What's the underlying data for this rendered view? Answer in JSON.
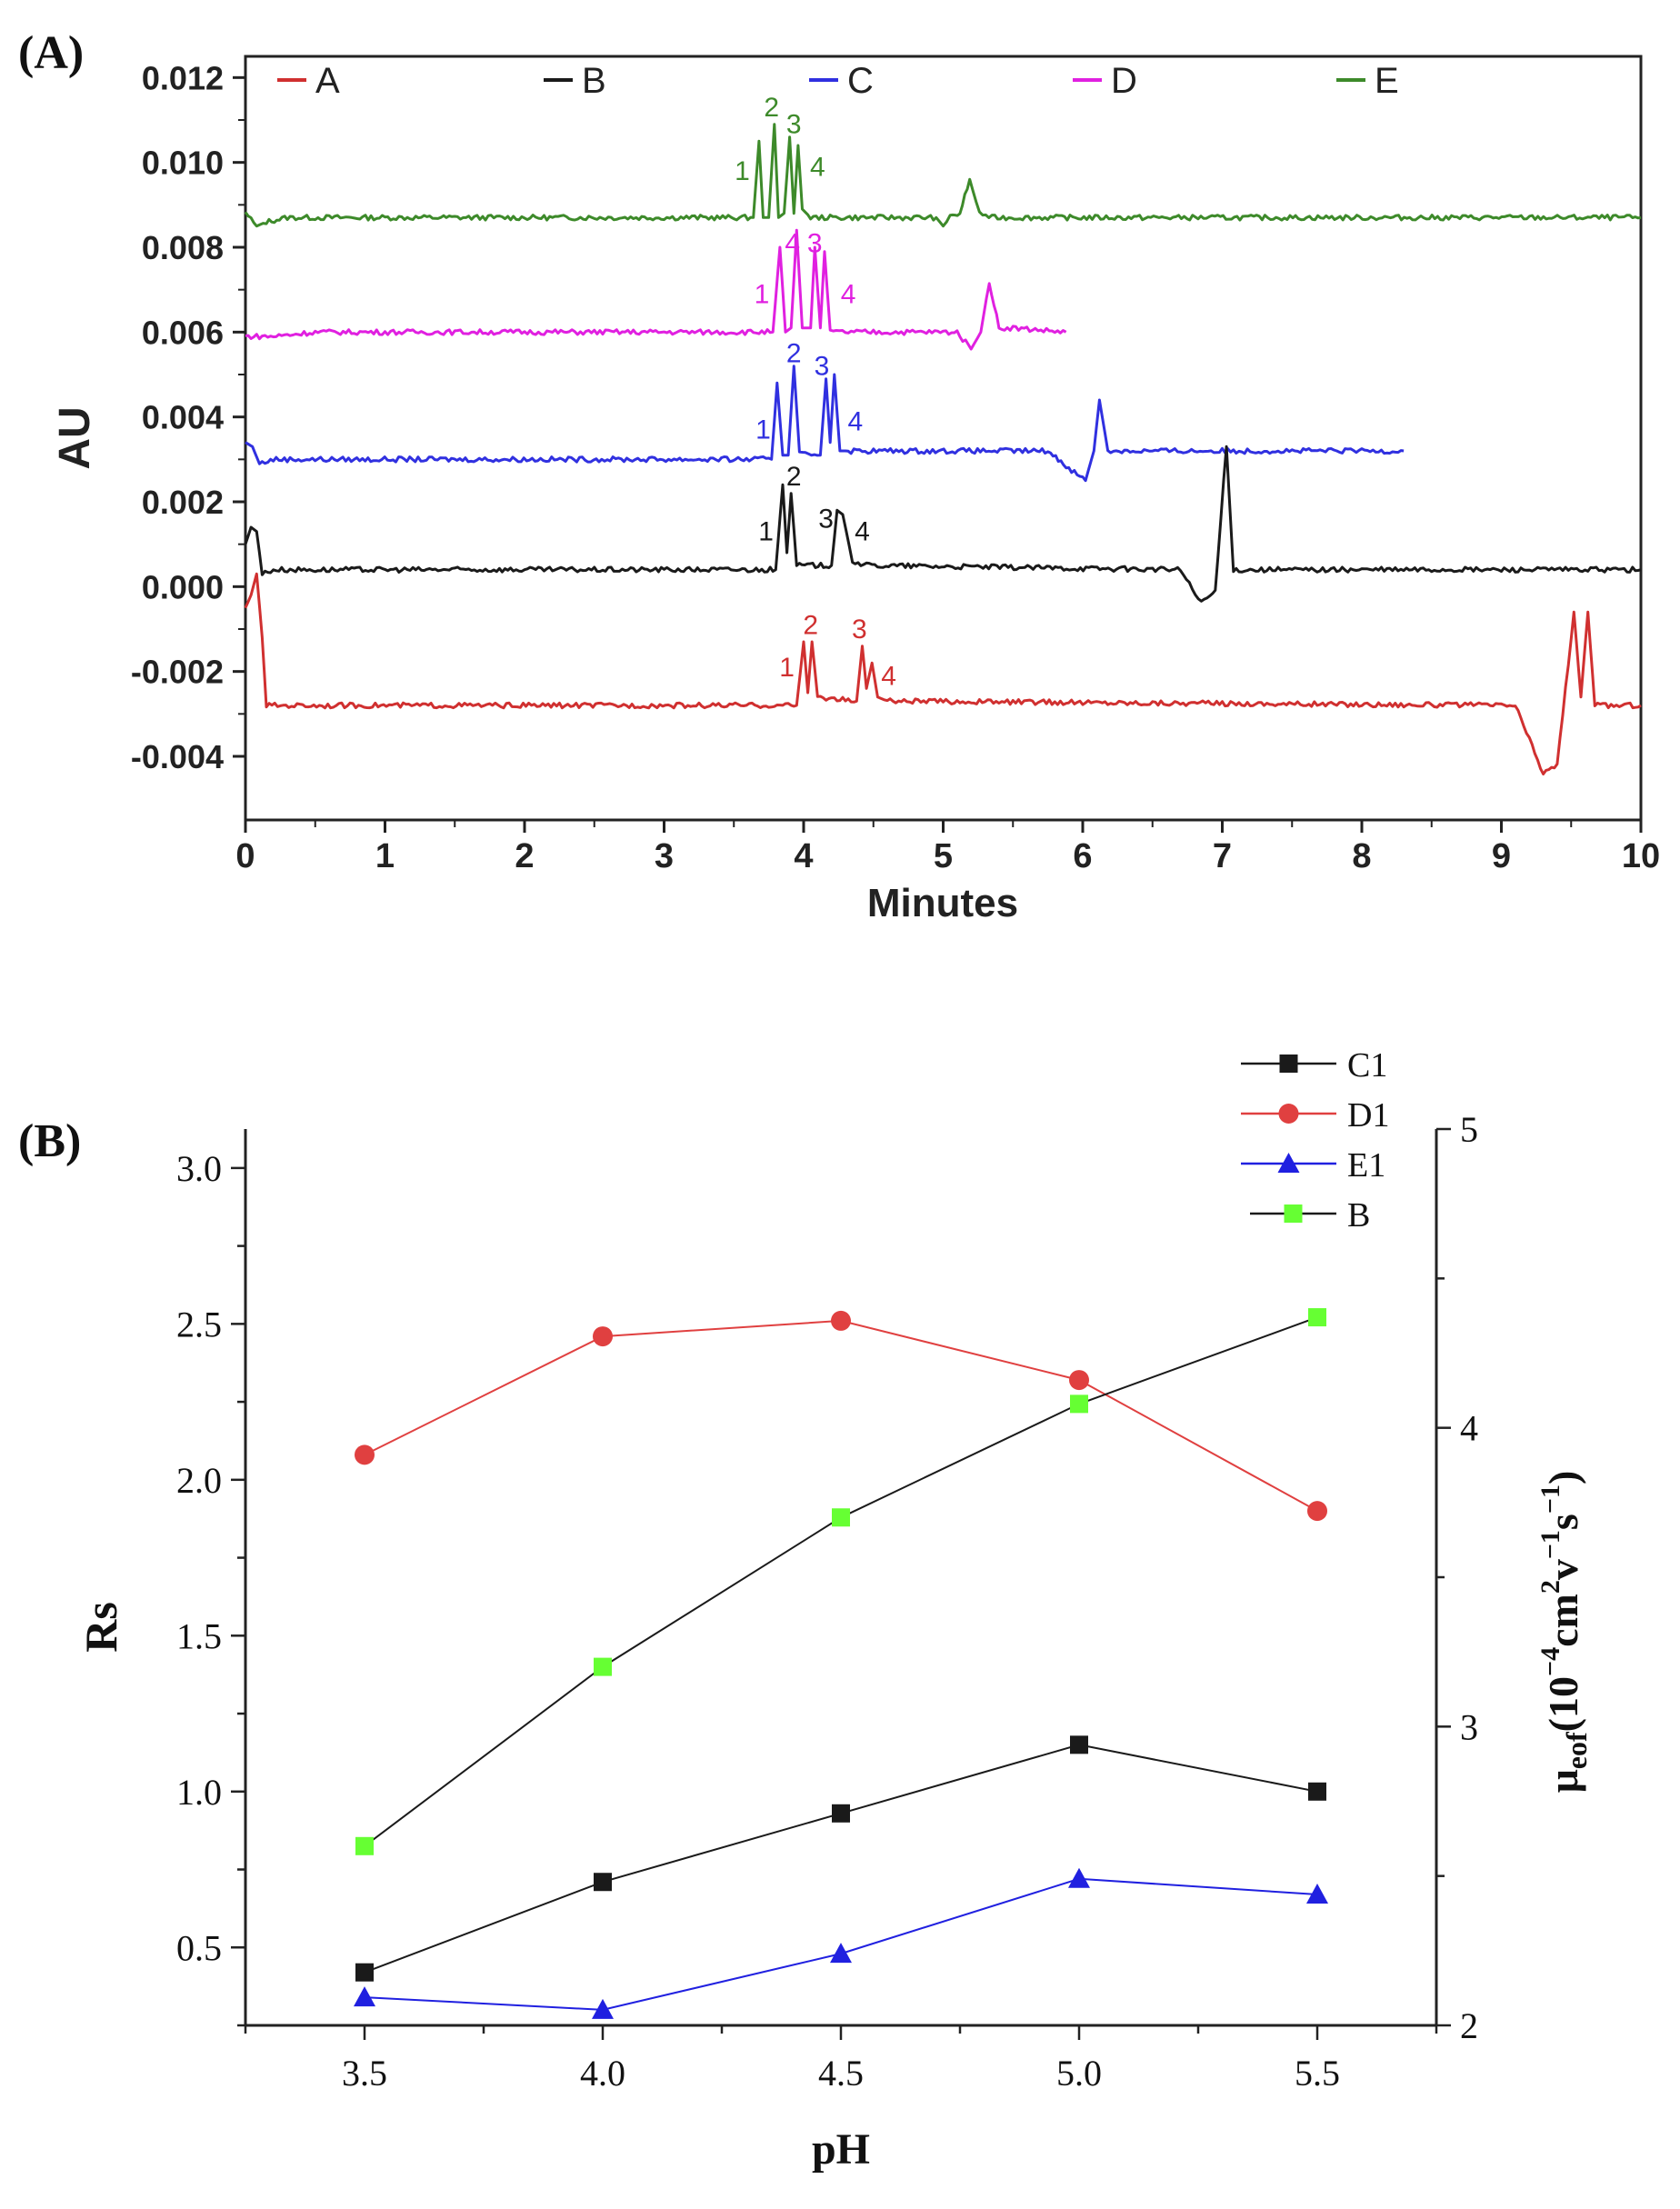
{
  "chart_data": [
    {
      "panel_label": "(A)",
      "type": "line",
      "xlabel": "Minutes",
      "ylabel": "AU",
      "xlim": [
        0,
        10
      ],
      "ylim": [
        -0.0055,
        0.0125
      ],
      "x_ticks": [
        "0",
        "1",
        "2",
        "3",
        "4",
        "5",
        "6",
        "7",
        "8",
        "9",
        "10"
      ],
      "y_ticks": [
        "-0.004",
        "-0.002",
        "0.000",
        "0.002",
        "0.004",
        "0.006",
        "0.008",
        "0.010",
        "0.012"
      ],
      "y_tick_values": [
        -0.004,
        -0.002,
        0.0,
        0.002,
        0.004,
        0.006,
        0.008,
        0.01,
        0.012
      ],
      "legend": [
        "A",
        "B",
        "C",
        "D",
        "E"
      ],
      "series": [
        {
          "name": "E",
          "color": "#3d8a2a",
          "baseline": 0.0087,
          "end": 10,
          "points": [
            [
              0,
              0.0088
            ],
            [
              0.08,
              0.0085
            ],
            [
              0.15,
              0.0086
            ],
            [
              0.3,
              0.0087
            ],
            [
              3.64,
              0.0087
            ],
            [
              3.68,
              0.0105
            ],
            [
              3.71,
              0.0087
            ],
            [
              3.75,
              0.0087
            ],
            [
              3.79,
              0.0109
            ],
            [
              3.82,
              0.0087
            ],
            [
              3.86,
              0.0088
            ],
            [
              3.9,
              0.0106
            ],
            [
              3.93,
              0.0088
            ],
            [
              3.96,
              0.0104
            ],
            [
              3.99,
              0.0089
            ],
            [
              4.05,
              0.0087
            ],
            [
              4.95,
              0.0087
            ],
            [
              5.0,
              0.0085
            ],
            [
              5.05,
              0.0087
            ],
            [
              5.12,
              0.0088
            ],
            [
              5.19,
              0.0096
            ],
            [
              5.26,
              0.0088
            ],
            [
              5.35,
              0.0087
            ],
            [
              10,
              0.0087
            ]
          ],
          "peak_labels": [
            {
              "label": "1",
              "x": 3.56,
              "y": 0.0098
            },
            {
              "label": "2",
              "x": 3.77,
              "y": 0.0113
            },
            {
              "label": "3",
              "x": 3.93,
              "y": 0.0109
            },
            {
              "label": "4",
              "x": 4.1,
              "y": 0.0099
            }
          ]
        },
        {
          "name": "D",
          "color": "#e020e0",
          "baseline": 0.006,
          "end": 5.88,
          "points": [
            [
              0,
              0.0059
            ],
            [
              0.2,
              0.0059
            ],
            [
              0.5,
              0.006
            ],
            [
              3.78,
              0.006
            ],
            [
              3.83,
              0.008
            ],
            [
              3.87,
              0.006
            ],
            [
              3.91,
              0.0061
            ],
            [
              3.95,
              0.0084
            ],
            [
              3.99,
              0.0061
            ],
            [
              4.05,
              0.0061
            ],
            [
              4.08,
              0.008
            ],
            [
              4.12,
              0.0061
            ],
            [
              4.15,
              0.0079
            ],
            [
              4.19,
              0.006
            ],
            [
              4.3,
              0.006
            ],
            [
              5.1,
              0.006
            ],
            [
              5.2,
              0.0056
            ],
            [
              5.27,
              0.006
            ],
            [
              5.33,
              0.0072
            ],
            [
              5.4,
              0.0061
            ],
            [
              5.5,
              0.0061
            ],
            [
              5.88,
              0.006
            ]
          ],
          "peak_labels": [
            {
              "label": "1",
              "x": 3.7,
              "y": 0.0069
            },
            {
              "label": "4",
              "x": 3.92,
              "y": 0.0081
            },
            {
              "label": "3",
              "x": 4.08,
              "y": 0.0081
            },
            {
              "label": "4",
              "x": 4.32,
              "y": 0.0069
            }
          ]
        },
        {
          "name": "C",
          "color": "#3030e0",
          "baseline": 0.003,
          "end": 8.3,
          "points": [
            [
              0,
              0.0034
            ],
            [
              0.05,
              0.0033
            ],
            [
              0.1,
              0.0029
            ],
            [
              0.2,
              0.003
            ],
            [
              3.77,
              0.003
            ],
            [
              3.81,
              0.0048
            ],
            [
              3.85,
              0.0031
            ],
            [
              3.89,
              0.0031
            ],
            [
              3.93,
              0.0052
            ],
            [
              3.97,
              0.0032
            ],
            [
              4.12,
              0.0031
            ],
            [
              4.16,
              0.0049
            ],
            [
              4.19,
              0.0034
            ],
            [
              4.22,
              0.005
            ],
            [
              4.26,
              0.0032
            ],
            [
              4.32,
              0.0032
            ],
            [
              5.75,
              0.0032
            ],
            [
              5.9,
              0.0028
            ],
            [
              6.02,
              0.0025
            ],
            [
              6.08,
              0.0032
            ],
            [
              6.12,
              0.0044
            ],
            [
              6.18,
              0.0032
            ],
            [
              6.3,
              0.0032
            ],
            [
              8.3,
              0.0032
            ]
          ],
          "peak_labels": [
            {
              "label": "1",
              "x": 3.71,
              "y": 0.0037
            },
            {
              "label": "2",
              "x": 3.93,
              "y": 0.0055
            },
            {
              "label": "3",
              "x": 4.13,
              "y": 0.0052
            },
            {
              "label": "4",
              "x": 4.37,
              "y": 0.0039
            }
          ]
        },
        {
          "name": "B",
          "color": "#1a1a1a",
          "baseline": 0.0004,
          "end": 10,
          "points": [
            [
              0,
              0.001
            ],
            [
              0.04,
              0.0014
            ],
            [
              0.08,
              0.0013
            ],
            [
              0.12,
              0.0003
            ],
            [
              0.2,
              0.0004
            ],
            [
              3.8,
              0.0004
            ],
            [
              3.85,
              0.0024
            ],
            [
              3.88,
              0.0008
            ],
            [
              3.91,
              0.0022
            ],
            [
              3.95,
              0.0005
            ],
            [
              4.2,
              0.0005
            ],
            [
              4.24,
              0.0018
            ],
            [
              4.28,
              0.0017
            ],
            [
              4.35,
              0.0006
            ],
            [
              4.45,
              0.0005
            ],
            [
              6.7,
              0.0004
            ],
            [
              6.85,
              -0.0004
            ],
            [
              6.95,
              -0.0001
            ],
            [
              7.03,
              0.0033
            ],
            [
              7.08,
              0.0004
            ],
            [
              7.2,
              0.0004
            ],
            [
              10,
              0.0004
            ]
          ],
          "peak_labels": [
            {
              "label": "1",
              "x": 3.73,
              "y": 0.0013
            },
            {
              "label": "2",
              "x": 3.93,
              "y": 0.0026
            },
            {
              "label": "3",
              "x": 4.16,
              "y": 0.0016
            },
            {
              "label": "4",
              "x": 4.42,
              "y": 0.0013
            }
          ]
        },
        {
          "name": "A",
          "color": "#d03030",
          "baseline": -0.0028,
          "end": 10,
          "points": [
            [
              0,
              -0.0005
            ],
            [
              0.04,
              -0.0002
            ],
            [
              0.08,
              0.0003
            ],
            [
              0.12,
              -0.0012
            ],
            [
              0.15,
              -0.0028
            ],
            [
              3.95,
              -0.0028
            ],
            [
              4.0,
              -0.0013
            ],
            [
              4.03,
              -0.0025
            ],
            [
              4.06,
              -0.0013
            ],
            [
              4.1,
              -0.0026
            ],
            [
              4.38,
              -0.0027
            ],
            [
              4.42,
              -0.0014
            ],
            [
              4.45,
              -0.0024
            ],
            [
              4.49,
              -0.0018
            ],
            [
              4.53,
              -0.0026
            ],
            [
              4.6,
              -0.0027
            ],
            [
              9.1,
              -0.0028
            ],
            [
              9.3,
              -0.0044
            ],
            [
              9.4,
              -0.0042
            ],
            [
              9.52,
              -0.0006
            ],
            [
              9.57,
              -0.0026
            ],
            [
              9.62,
              -0.0006
            ],
            [
              9.67,
              -0.0028
            ],
            [
              10,
              -0.0028
            ]
          ],
          "peak_labels": [
            {
              "label": "1",
              "x": 3.88,
              "y": -0.0019
            },
            {
              "label": "2",
              "x": 4.05,
              "y": -0.0009
            },
            {
              "label": "3",
              "x": 4.4,
              "y": -0.001
            },
            {
              "label": "4",
              "x": 4.61,
              "y": -0.0021
            }
          ]
        }
      ]
    },
    {
      "panel_label": "(B)",
      "type": "line",
      "xlabel": "pH",
      "ylabel": "Rs",
      "ylabel_right": "μeof(10−4cm2v−1s−1)",
      "xlim": [
        3.25,
        5.75
      ],
      "ylim": [
        0.25,
        3.125
      ],
      "ylim_right": [
        2,
        5
      ],
      "categories": [
        3.5,
        4.0,
        4.5,
        5.0,
        5.5
      ],
      "x_ticks": [
        "3.5",
        "4.0",
        "4.5",
        "5.0",
        "5.5"
      ],
      "y_ticks": [
        "0.5",
        "1.0",
        "1.5",
        "2.0",
        "2.5",
        "3.0"
      ],
      "y_tick_values": [
        0.5,
        1.0,
        1.5,
        2.0,
        2.5,
        3.0
      ],
      "y_ticks_right": [
        "2",
        "3",
        "4",
        "5"
      ],
      "y_tick_values_right": [
        2,
        3,
        4,
        5
      ],
      "series": [
        {
          "name": "C1",
          "color": "#1a1a1a",
          "marker": "square",
          "axis": "left",
          "values": [
            0.42,
            0.71,
            0.93,
            1.15,
            1.0
          ]
        },
        {
          "name": "D1",
          "color": "#e04040",
          "marker": "circle",
          "axis": "left",
          "values": [
            2.08,
            2.46,
            2.51,
            2.32,
            1.9
          ]
        },
        {
          "name": "E1",
          "color": "#2020e0",
          "marker": "triangle",
          "axis": "left",
          "values": [
            0.34,
            0.3,
            0.48,
            0.72,
            0.67
          ]
        },
        {
          "name": "B",
          "color": "#66ff33",
          "line_color": "#1a1a1a",
          "marker": "square",
          "axis": "right",
          "values": [
            2.6,
            3.2,
            3.7,
            4.08,
            4.37
          ]
        }
      ]
    }
  ],
  "right_axis_label": {
    "prefix": "μ",
    "sub": "eof",
    "open": "(10",
    "exp1": "−4",
    "cm": "cm",
    "exp2": "2",
    "v": "v",
    "exp3": "−1",
    "s": "s",
    "exp4": "−1",
    "close": ")"
  }
}
